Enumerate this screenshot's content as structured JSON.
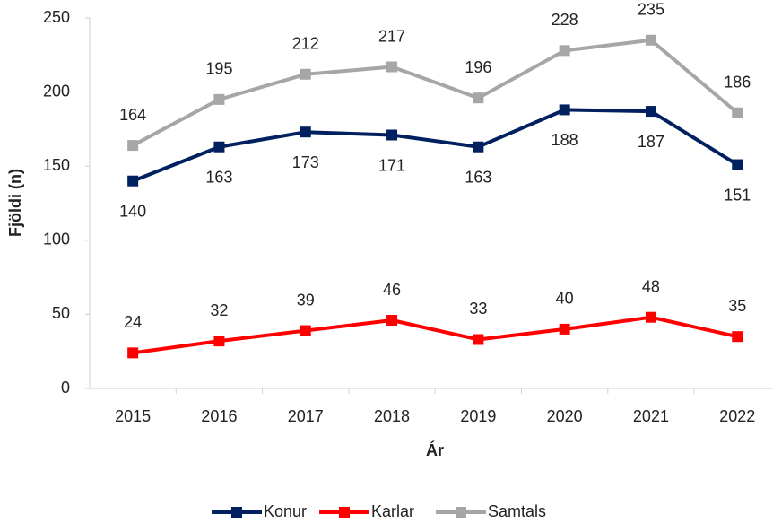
{
  "chart_data": {
    "type": "line",
    "x_label": "Ár",
    "y_label": "Fjöldi (n)",
    "categories": [
      "2015",
      "2016",
      "2017",
      "2018",
      "2019",
      "2020",
      "2021",
      "2022"
    ],
    "series": [
      {
        "name": "Konur",
        "color": "#002060",
        "values": [
          140,
          163,
          173,
          171,
          163,
          188,
          187,
          151
        ]
      },
      {
        "name": "Karlar",
        "color": "#ff0000",
        "values": [
          24,
          32,
          39,
          46,
          33,
          40,
          48,
          35
        ]
      },
      {
        "name": "Samtals",
        "color": "#a6a6a6",
        "values": [
          164,
          195,
          212,
          217,
          196,
          228,
          235,
          186
        ]
      }
    ],
    "ylim": [
      0,
      250
    ],
    "yticks": [
      0,
      50,
      100,
      150,
      200,
      250
    ],
    "grid": false,
    "legend": "bottom"
  }
}
